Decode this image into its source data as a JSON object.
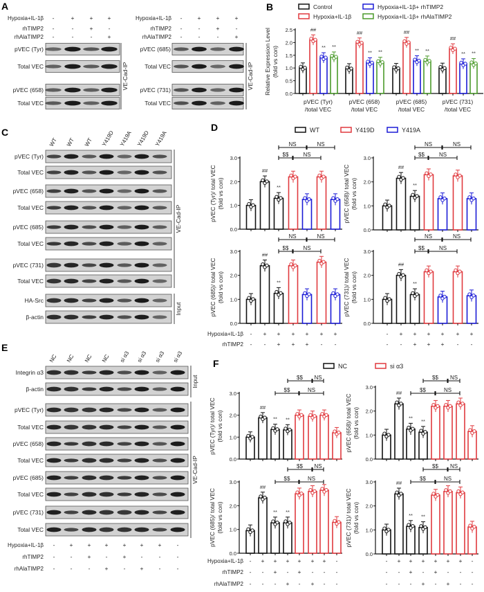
{
  "panel_labels": {
    "a": "A",
    "b": "B",
    "c": "C",
    "d": "D",
    "e": "E",
    "f": "F"
  },
  "colors": {
    "black": "#111111",
    "red": "#e0393e",
    "blue": "#1a1ad6",
    "green": "#4a9a2a"
  },
  "panel_a": {
    "conditions": [
      {
        "label": "Hypoxia+IL-1β",
        "signs": [
          "-",
          "+",
          "+",
          "+"
        ]
      },
      {
        "label": "rhTIMP2",
        "signs": [
          "-",
          "-",
          "+",
          "-"
        ]
      },
      {
        "label": "rhAlaTIMP2",
        "signs": [
          "-",
          "-",
          "-",
          "+"
        ]
      }
    ],
    "left_blots": [
      "pVEC (Tyr)",
      "Total VEC",
      "pVEC (658)",
      "Total VEC"
    ],
    "right_blots": [
      "pVEC (685)",
      "Total VEC",
      "pVEC (731)",
      "Total VEC"
    ],
    "ip_label": "VE-Cad-IP"
  },
  "panel_c": {
    "lanes": [
      "WT",
      "WT",
      "WT",
      "Y419D",
      "Y419A",
      "Y419D",
      "Y419A"
    ],
    "blots": [
      "pVEC (Tyr)",
      "Total VEC",
      "pVEC (658)",
      "Total VEC",
      "pVEC (685)",
      "Total VEC",
      "pVEC (731)",
      "Total VEC",
      "HA-Src",
      "β-actin"
    ],
    "ip_label": "VE-Cad-IP",
    "input_label": "Input"
  },
  "panel_d": {
    "legend": [
      {
        "label": "WT",
        "color": "#111111"
      },
      {
        "label": "Y419D",
        "color": "#e0393e"
      },
      {
        "label": "Y419A",
        "color": "#1a1ad6"
      }
    ],
    "conditions": [
      {
        "label": "Hypoxia+IL-1β",
        "signs": [
          "-",
          "+",
          "+",
          "+",
          "+",
          "+",
          "+"
        ]
      },
      {
        "label": "rhTIMP2",
        "signs": [
          "-",
          "-",
          "+",
          "+",
          "+",
          "-",
          "-"
        ]
      }
    ]
  },
  "panel_e": {
    "lanes": [
      "NC",
      "NC",
      "NC",
      "NC",
      "si α3",
      "si α3",
      "si α3",
      "si α3"
    ],
    "blots": [
      "Integrin α3",
      "β-actin",
      "pVEC (Tyr)",
      "Total VEC",
      "pVEC (658)",
      "Total VEC",
      "pVEC (685)",
      "Total VEC",
      "pVEC (731)",
      "Total VEC"
    ],
    "input_label": "Input",
    "ip_label": "VE-Cad-IP",
    "conditions": [
      {
        "label": "Hypoxia+IL-1β",
        "signs": [
          "-",
          "+",
          "+",
          "+",
          "+",
          "+",
          "+",
          "-"
        ]
      },
      {
        "label": "rhTIMP2",
        "signs": [
          "-",
          "-",
          "+",
          "-",
          "+",
          "-",
          "-",
          "-"
        ]
      },
      {
        "label": "rhAlaTIMP2",
        "signs": [
          "-",
          "-",
          "-",
          "+",
          "-",
          "+",
          "-",
          "-"
        ]
      }
    ]
  },
  "panel_f": {
    "legend": [
      {
        "label": "NC",
        "color": "#111111"
      },
      {
        "label": "si α3",
        "color": "#e0393e"
      }
    ],
    "conditions": [
      {
        "label": "Hypoxia+IL-1β",
        "signs": [
          "-",
          "+",
          "+",
          "+",
          "+",
          "+",
          "+",
          "-"
        ]
      },
      {
        "label": "rhTIMP2",
        "signs": [
          "-",
          "-",
          "+",
          "-",
          "+",
          "-",
          "-",
          "-"
        ]
      },
      {
        "label": "rhAlaTIMP2",
        "signs": [
          "-",
          "-",
          "-",
          "+",
          "-",
          "+",
          "-",
          "-"
        ]
      }
    ]
  },
  "chart_data": [
    {
      "panel": "B",
      "type": "bar",
      "ylabel": [
        "Relative Expression Level",
        "(fold vs con)"
      ],
      "ylim": [
        0,
        2.5
      ],
      "yticks": [
        "0.0",
        "0.5",
        "1.0",
        "1.5",
        "2.0",
        "2.5"
      ],
      "categories": [
        [
          "pVEC (Tyr)",
          "/total VEC"
        ],
        [
          "pVEC (658)",
          "/total VEC"
        ],
        [
          "pVEC (685)",
          "/total VEC"
        ],
        [
          "pVEC (731)",
          "/total VEC"
        ]
      ],
      "legend_position": "top",
      "series": [
        {
          "name": "Control",
          "color": "#111111",
          "values": [
            1.0,
            0.97,
            0.98,
            0.99
          ],
          "mark": ""
        },
        {
          "name": "Hypoxia+IL-1β",
          "color": "#e0393e",
          "values": [
            2.1,
            1.98,
            2.0,
            1.75
          ],
          "mark": "##"
        },
        {
          "name": "Hypoxia+IL-1β+ rhTIMP2",
          "color": "#1a1ad6",
          "values": [
            1.4,
            1.2,
            1.28,
            1.16
          ],
          "mark": "**"
        },
        {
          "name": "Hypoxia+IL-1β+ rhAlaTIMP2",
          "color": "#4a9a2a",
          "values": [
            1.43,
            1.22,
            1.27,
            1.17
          ],
          "mark": "**"
        }
      ]
    },
    {
      "panel": "D",
      "type": "bar",
      "ylabel": [
        "pVEC (Tyr)/ total VEC",
        "(fold vs con)"
      ],
      "ylim": [
        0,
        3
      ],
      "yticks": [
        "0.0",
        "1.0",
        "2.0",
        "3.0"
      ],
      "bar_colors": [
        "#111111",
        "#111111",
        "#111111",
        "#e0393e",
        "#1a1ad6",
        "#e0393e",
        "#1a1ad6"
      ],
      "values": [
        1.0,
        2.0,
        1.3,
        2.2,
        1.25,
        2.2,
        1.25
      ],
      "marks": [
        "",
        "##",
        "**",
        "",
        "",
        "",
        ""
      ],
      "brackets": [
        {
          "label": "NS",
          "from": 2,
          "to": 4,
          "level": 1
        },
        {
          "label": "NS",
          "from": 4,
          "to": 6,
          "level": 1
        },
        {
          "label": "$$",
          "from": 2,
          "to": 3,
          "level": 0
        },
        {
          "label": "NS",
          "from": 3,
          "to": 5,
          "level": 0
        }
      ]
    },
    {
      "panel": "D",
      "type": "bar",
      "ylabel": [
        "pVEC (658)/ total VEC",
        "(fold vs con)"
      ],
      "ylim": [
        0,
        3
      ],
      "yticks": [
        "0.0",
        "1.0",
        "2.0",
        "3.0"
      ],
      "bar_colors": [
        "#111111",
        "#111111",
        "#111111",
        "#e0393e",
        "#1a1ad6",
        "#e0393e",
        "#1a1ad6"
      ],
      "values": [
        1.0,
        2.15,
        1.4,
        2.3,
        1.3,
        2.25,
        1.3
      ],
      "marks": [
        "",
        "##",
        "**",
        "",
        "",
        "",
        ""
      ],
      "brackets": [
        {
          "label": "NS",
          "from": 2,
          "to": 4,
          "level": 1
        },
        {
          "label": "NS",
          "from": 4,
          "to": 6,
          "level": 1
        },
        {
          "label": "$$",
          "from": 2,
          "to": 3,
          "level": 0
        },
        {
          "label": "NS",
          "from": 3,
          "to": 5,
          "level": 0
        }
      ]
    },
    {
      "panel": "D",
      "type": "bar",
      "ylabel": [
        "pVEC (685)/ total VEC",
        "(fold vs con)"
      ],
      "ylim": [
        0,
        3
      ],
      "yticks": [
        "0.0",
        "1.0",
        "2.0",
        "3.0"
      ],
      "bar_colors": [
        "#111111",
        "#111111",
        "#111111",
        "#e0393e",
        "#1a1ad6",
        "#e0393e",
        "#1a1ad6"
      ],
      "values": [
        1.0,
        2.4,
        1.25,
        2.4,
        1.2,
        2.55,
        1.2
      ],
      "marks": [
        "",
        "##",
        "**",
        "",
        "",
        "",
        ""
      ],
      "brackets": [
        {
          "label": "NS",
          "from": 2,
          "to": 4,
          "level": 1
        },
        {
          "label": "NS",
          "from": 4,
          "to": 6,
          "level": 1
        },
        {
          "label": "$$",
          "from": 2,
          "to": 3,
          "level": 0
        },
        {
          "label": "NS",
          "from": 3,
          "to": 5,
          "level": 0
        }
      ]
    },
    {
      "panel": "D",
      "type": "bar",
      "ylabel": [
        "pVEC (731)/ total VEC",
        "(fold vs con)"
      ],
      "ylim": [
        0,
        3
      ],
      "yticks": [
        "0.0",
        "1.0",
        "2.0",
        "3.0"
      ],
      "bar_colors": [
        "#111111",
        "#111111",
        "#111111",
        "#e0393e",
        "#1a1ad6",
        "#e0393e",
        "#1a1ad6"
      ],
      "values": [
        1.0,
        2.0,
        1.2,
        2.15,
        1.1,
        2.15,
        1.15
      ],
      "marks": [
        "",
        "##",
        "**",
        "",
        "",
        "",
        ""
      ],
      "brackets": [
        {
          "label": "NS",
          "from": 2,
          "to": 4,
          "level": 1
        },
        {
          "label": "NS",
          "from": 4,
          "to": 6,
          "level": 1
        },
        {
          "label": "$$",
          "from": 2,
          "to": 3,
          "level": 0
        },
        {
          "label": "NS",
          "from": 3,
          "to": 5,
          "level": 0
        }
      ]
    },
    {
      "panel": "F",
      "type": "bar",
      "ylabel": [
        "pVEC (Tyr)/ total VEC",
        "(fold vs con)"
      ],
      "ylim": [
        0,
        3
      ],
      "yticks": [
        "0.0",
        "1.0",
        "2.0",
        "3.0"
      ],
      "bar_colors": [
        "#111111",
        "#111111",
        "#111111",
        "#111111",
        "#e0393e",
        "#e0393e",
        "#e0393e",
        "#e0393e"
      ],
      "values": [
        1.0,
        1.88,
        1.35,
        1.33,
        2.0,
        1.95,
        2.0,
        1.2
      ],
      "marks": [
        "",
        "##",
        "**",
        "**",
        "",
        "",
        "",
        ""
      ],
      "brackets": [
        {
          "label": "$$",
          "from": 3,
          "to": 5,
          "level": 1
        },
        {
          "label": "NS",
          "from": 5,
          "to": 6,
          "level": 1
        },
        {
          "label": "$$",
          "from": 2,
          "to": 4,
          "level": 0
        },
        {
          "label": "NS",
          "from": 4,
          "to": 6,
          "level": 0
        }
      ]
    },
    {
      "panel": "F",
      "type": "bar",
      "ylabel": [
        "pVEC (658)/ total VEC",
        "(fold vs con)"
      ],
      "ylim": [
        0,
        3
      ],
      "yticks": [
        "0.0",
        "1.0",
        "2.0",
        "3.0"
      ],
      "bar_colors": [
        "#111111",
        "#111111",
        "#111111",
        "#111111",
        "#e0393e",
        "#e0393e",
        "#e0393e",
        "#e0393e"
      ],
      "values": [
        1.0,
        2.3,
        1.25,
        1.12,
        2.2,
        2.2,
        2.3,
        1.15
      ],
      "marks": [
        "",
        "##",
        "**",
        "**",
        "",
        "",
        "",
        ""
      ],
      "brackets": [
        {
          "label": "$$",
          "from": 3,
          "to": 5,
          "level": 1
        },
        {
          "label": "NS",
          "from": 5,
          "to": 6,
          "level": 1
        },
        {
          "label": "$$",
          "from": 2,
          "to": 4,
          "level": 0
        },
        {
          "label": "NS",
          "from": 4,
          "to": 6,
          "level": 0
        }
      ]
    },
    {
      "panel": "F",
      "type": "bar",
      "ylabel": [
        "pVEC (685)/ total VEC",
        "(fold vs con)"
      ],
      "ylim": [
        0,
        3
      ],
      "yticks": [
        "0.0",
        "1.0",
        "2.0",
        "3.0"
      ],
      "bar_colors": [
        "#111111",
        "#111111",
        "#111111",
        "#111111",
        "#e0393e",
        "#e0393e",
        "#e0393e",
        "#e0393e"
      ],
      "values": [
        0.95,
        2.33,
        1.28,
        1.28,
        2.5,
        2.6,
        2.65,
        1.3
      ],
      "marks": [
        "",
        "##",
        "**",
        "**",
        "",
        "",
        "",
        ""
      ],
      "brackets": [
        {
          "label": "$$",
          "from": 3,
          "to": 5,
          "level": 1
        },
        {
          "label": "NS",
          "from": 5,
          "to": 6,
          "level": 1
        },
        {
          "label": "$$",
          "from": 2,
          "to": 4,
          "level": 0
        },
        {
          "label": "NS",
          "from": 4,
          "to": 6,
          "level": 0
        }
      ]
    },
    {
      "panel": "F",
      "type": "bar",
      "ylabel": [
        "pVEC (731)/ total VEC",
        "(fold vs con)"
      ],
      "ylim": [
        0,
        3
      ],
      "yticks": [
        "0.0",
        "1.0",
        "2.0",
        "3.0"
      ],
      "bar_colors": [
        "#111111",
        "#111111",
        "#111111",
        "#111111",
        "#e0393e",
        "#e0393e",
        "#e0393e",
        "#e0393e"
      ],
      "values": [
        1.0,
        2.5,
        1.15,
        1.1,
        2.45,
        2.6,
        2.55,
        1.12
      ],
      "marks": [
        "",
        "##",
        "**",
        "**",
        "",
        "",
        "",
        ""
      ],
      "brackets": [
        {
          "label": "$$",
          "from": 3,
          "to": 5,
          "level": 1
        },
        {
          "label": "NS",
          "from": 5,
          "to": 6,
          "level": 1
        },
        {
          "label": "$$",
          "from": 2,
          "to": 4,
          "level": 0
        },
        {
          "label": "NS",
          "from": 4,
          "to": 6,
          "level": 0
        }
      ]
    }
  ]
}
